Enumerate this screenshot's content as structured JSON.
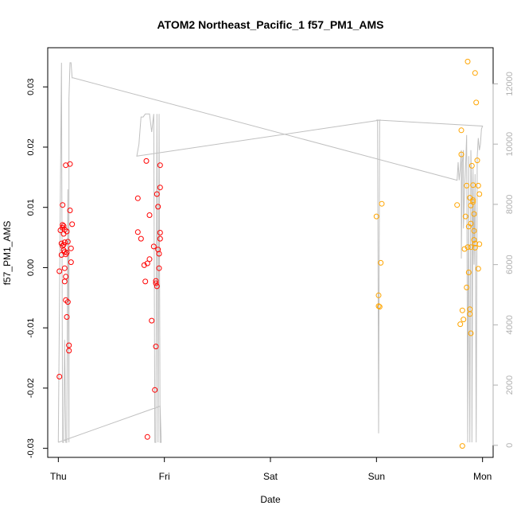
{
  "chart_data": {
    "type": "scatter",
    "title": "ATOM2 Northeast_Pacific_1 f57_PM1_AMS",
    "xlabel": "Date",
    "ylabel": "f57_PM1_AMS",
    "x_ticks": [
      "Thu",
      "Fri",
      "Sat",
      "Sun",
      "Mon"
    ],
    "xlim": [
      -0.1,
      4.1
    ],
    "ylim": [
      -0.0315,
      0.0365
    ],
    "y_ticks": [
      -0.03,
      -0.02,
      -0.01,
      0.0,
      0.01,
      0.02,
      0.03
    ],
    "y_tick_labels": [
      "-0.03",
      "-0.02",
      "-0.01",
      "0.00",
      "0.01",
      "0.02",
      "0.03"
    ],
    "y2lim": [
      -400,
      13200
    ],
    "y2_ticks": [
      0,
      2000,
      4000,
      6000,
      8000,
      10000,
      12000
    ],
    "y2_tick_labels": [
      "0",
      "2000",
      "4000",
      "6000",
      "8000",
      "10000",
      "12000"
    ],
    "grid": false,
    "colors": {
      "series_red": "#ff0000",
      "series_orange": "#ffa500",
      "line": "#c0c0c0"
    },
    "series": [
      {
        "color": "red",
        "points": [
          [
            0.01,
            -0.0181
          ],
          [
            0.01,
            -0.0006
          ],
          [
            0.02,
            0.0062
          ],
          [
            0.03,
            0.004
          ],
          [
            0.03,
            0.0021
          ],
          [
            0.04,
            0.0066
          ],
          [
            0.04,
            0.0071
          ],
          [
            0.04,
            0.0036
          ],
          [
            0.04,
            0.0104
          ],
          [
            0.05,
            0.0038
          ],
          [
            0.05,
            0.0056
          ],
          [
            0.05,
            0.0069
          ],
          [
            0.05,
            0.0029
          ],
          [
            0.06,
            0.0063
          ],
          [
            0.06,
            0.0042
          ],
          [
            0.06,
            -0.0001
          ],
          [
            0.06,
            -0.0023
          ],
          [
            0.06,
            0.0026
          ],
          [
            0.07,
            0.0022
          ],
          [
            0.07,
            0.017
          ],
          [
            0.07,
            -0.0015
          ],
          [
            0.07,
            -0.0054
          ],
          [
            0.08,
            0.006
          ],
          [
            0.08,
            -0.0082
          ],
          [
            0.08,
            0.0025
          ],
          [
            0.09,
            -0.0057
          ],
          [
            0.09,
            0.0043
          ],
          [
            0.1,
            -0.0129
          ],
          [
            0.1,
            -0.0138
          ],
          [
            0.11,
            0.0172
          ],
          [
            0.11,
            0.0095
          ],
          [
            0.12,
            0.0009
          ],
          [
            0.12,
            0.0032
          ],
          [
            0.13,
            0.0072
          ],
          [
            0.75,
            0.0115
          ],
          [
            0.75,
            0.0059
          ],
          [
            0.78,
            0.0048
          ],
          [
            0.81,
            0.0004
          ],
          [
            0.82,
            -0.0023
          ],
          [
            0.83,
            0.0177
          ],
          [
            0.84,
            -0.0281
          ],
          [
            0.84,
            0.0007
          ],
          [
            0.86,
            0.0087
          ],
          [
            0.86,
            0.0014
          ],
          [
            0.88,
            -0.0088
          ],
          [
            0.9,
            0.0035
          ],
          [
            0.91,
            -0.0203
          ],
          [
            0.92,
            -0.0131
          ],
          [
            0.92,
            -0.0026
          ],
          [
            0.92,
            -0.0022
          ],
          [
            0.93,
            0.0122
          ],
          [
            0.93,
            -0.0031
          ],
          [
            0.94,
            0.0101
          ],
          [
            0.94,
            0.003
          ],
          [
            0.95,
            0.0023
          ],
          [
            0.95,
            -0.0001
          ],
          [
            0.96,
            0.017
          ],
          [
            0.96,
            0.0133
          ],
          [
            0.96,
            0.0058
          ],
          [
            0.96,
            0.0048
          ]
        ]
      },
      {
        "color": "orange",
        "points": [
          [
            3.0,
            0.0085
          ],
          [
            3.02,
            -0.0046
          ],
          [
            3.02,
            -0.0064
          ],
          [
            3.03,
            -0.0065
          ],
          [
            3.04,
            0.0008
          ],
          [
            3.05,
            0.0106
          ],
          [
            3.76,
            0.0104
          ],
          [
            3.79,
            -0.0094
          ],
          [
            3.8,
            0.0228
          ],
          [
            3.8,
            0.0188
          ],
          [
            3.81,
            -0.0071
          ],
          [
            3.81,
            -0.0296
          ],
          [
            3.82,
            -0.0086
          ],
          [
            3.83,
            0.0031
          ],
          [
            3.84,
            0.0085
          ],
          [
            3.85,
            0.0136
          ],
          [
            3.85,
            -0.0033
          ],
          [
            3.86,
            0.0342
          ],
          [
            3.86,
            0.0034
          ],
          [
            3.87,
            0.0068
          ],
          [
            3.87,
            -0.0008
          ],
          [
            3.88,
            -0.0069
          ],
          [
            3.88,
            0.0116
          ],
          [
            3.88,
            -0.0077
          ],
          [
            3.89,
            0.0073
          ],
          [
            3.89,
            0.0034
          ],
          [
            3.89,
            -0.0109
          ],
          [
            3.89,
            0.0103
          ],
          [
            3.9,
            0.0169
          ],
          [
            3.91,
            0.0112
          ],
          [
            3.91,
            0.0109
          ],
          [
            3.91,
            0.0137
          ],
          [
            3.92,
            0.0061
          ],
          [
            3.92,
            0.0046
          ],
          [
            3.92,
            0.0089
          ],
          [
            3.93,
            0.004
          ],
          [
            3.93,
            0.0323
          ],
          [
            3.93,
            0.0033
          ],
          [
            3.94,
            0.0274
          ],
          [
            3.95,
            0.0178
          ],
          [
            3.96,
            0.0136
          ],
          [
            3.96,
            -0.0002
          ],
          [
            3.97,
            0.0122
          ],
          [
            3.97,
            0.0039
          ]
        ]
      }
    ],
    "line_series": {
      "axis": "right",
      "points": [
        [
          0.0,
          100
        ],
        [
          0.0,
          100
        ],
        [
          0.03,
          12700
        ],
        [
          0.04,
          100
        ],
        [
          0.05,
          100
        ],
        [
          0.06,
          3500
        ],
        [
          0.07,
          100
        ],
        [
          0.08,
          100
        ],
        [
          0.09,
          8500
        ],
        [
          0.1,
          100
        ],
        [
          0.1,
          11500
        ],
        [
          0.11,
          12700
        ],
        [
          0.12,
          12700
        ],
        [
          0.13,
          12200
        ],
        [
          0.14,
          12200
        ],
        [
          3.76,
          8800
        ],
        [
          3.77,
          9400
        ],
        [
          3.78,
          8800
        ],
        [
          3.79,
          9200
        ],
        [
          3.8,
          9800
        ],
        [
          3.8,
          6200
        ],
        [
          3.81,
          9400
        ],
        [
          3.82,
          9800
        ],
        [
          3.82,
          7200
        ],
        [
          3.83,
          8400
        ],
        [
          3.84,
          9200
        ],
        [
          3.85,
          10300
        ],
        [
          3.86,
          100
        ],
        [
          3.87,
          9600
        ],
        [
          3.87,
          7000
        ],
        [
          3.88,
          100
        ],
        [
          3.89,
          9800
        ],
        [
          3.9,
          8000
        ],
        [
          3.9,
          100
        ],
        [
          3.91,
          9200
        ],
        [
          3.92,
          6000
        ],
        [
          3.93,
          9000
        ],
        [
          3.94,
          100
        ],
        [
          3.95,
          9600
        ],
        [
          3.96,
          10200
        ],
        [
          3.97,
          9800
        ],
        [
          3.98,
          10000
        ],
        [
          3.99,
          10500
        ],
        [
          4.0,
          10600
        ],
        [
          3.0,
          10800
        ],
        [
          3.01,
          10800
        ],
        [
          3.02,
          400
        ],
        [
          3.03,
          10800
        ],
        [
          3.04,
          10800
        ],
        [
          0.74,
          9600
        ],
        [
          0.76,
          10000
        ],
        [
          0.78,
          10900
        ],
        [
          0.8,
          10900
        ],
        [
          0.82,
          11000
        ],
        [
          0.86,
          11000
        ],
        [
          0.88,
          10400
        ],
        [
          0.9,
          11000
        ],
        [
          0.91,
          100
        ],
        [
          0.92,
          100
        ],
        [
          0.93,
          11000
        ],
        [
          0.94,
          100
        ],
        [
          0.95,
          11000
        ],
        [
          0.96,
          100
        ],
        [
          0.97,
          100
        ],
        [
          0.96,
          1300
        ],
        [
          0.0,
          100
        ]
      ]
    }
  }
}
